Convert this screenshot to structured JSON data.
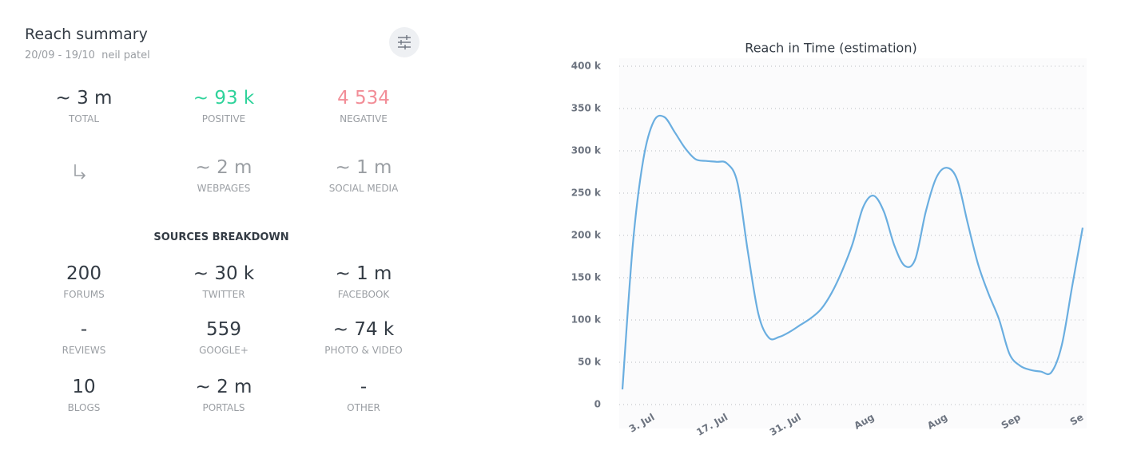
{
  "summary": {
    "title": "Reach summary",
    "period": "20/09 - 19/10",
    "user": "neil patel",
    "stats": [
      {
        "value": "~ 3 m",
        "label": "TOTAL",
        "color": "#333b44"
      },
      {
        "value": "~ 93 k",
        "label": "POSITIVE",
        "color": "#2fd39b"
      },
      {
        "value": "4 534",
        "label": "NEGATIVE",
        "color": "#f28d97"
      }
    ],
    "channels": [
      {
        "value": "~ 2 m",
        "label": "WEBPAGES",
        "color": "#9a9ea3"
      },
      {
        "value": "~ 1 m",
        "label": "SOCIAL MEDIA",
        "color": "#9a9ea3"
      }
    ],
    "breakdown_title": "SOURCES BREAKDOWN",
    "sources": [
      {
        "value": "200",
        "label": "FORUMS"
      },
      {
        "value": "~ 30 k",
        "label": "TWITTER"
      },
      {
        "value": "~ 1 m",
        "label": "FACEBOOK"
      },
      {
        "value": "-",
        "label": "REVIEWS"
      },
      {
        "value": "559",
        "label": "GOOGLE+"
      },
      {
        "value": "~ 74 k",
        "label": "PHOTO & VIDEO"
      },
      {
        "value": "10",
        "label": "BLOGS"
      },
      {
        "value": "~ 2 m",
        "label": "PORTALS"
      },
      {
        "value": "-",
        "label": "OTHER"
      }
    ]
  },
  "chart_data": {
    "type": "line",
    "title": "Reach in Time (estimation)",
    "categories": [
      null,
      null,
      null,
      "3. Jul",
      null,
      null,
      null,
      null,
      null,
      null,
      "17. Jul",
      null,
      null,
      null,
      null,
      null,
      null,
      "31. Jul",
      null,
      null,
      null,
      null,
      null,
      null,
      "Aug",
      null,
      null,
      null,
      null,
      null,
      null,
      "Aug",
      null,
      null,
      null,
      null,
      null,
      null,
      "Sep",
      null,
      null,
      null,
      null,
      null,
      "Se"
    ],
    "series": [
      {
        "name": "Reach",
        "color": "#6aaee0",
        "values": [
          18000,
          190000,
          290000,
          335000,
          340000,
          322000,
          303000,
          290000,
          288000,
          287000,
          285000,
          262000,
          180000,
          107000,
          79000,
          80000,
          86000,
          94000,
          102000,
          113000,
          132000,
          158000,
          190000,
          233000,
          247000,
          228000,
          188000,
          164000,
          172000,
          228000,
          268000,
          280000,
          266000,
          215000,
          166000,
          131000,
          101000,
          60000,
          46000,
          41000,
          39000,
          38000,
          70000,
          140000,
          209000
        ]
      }
    ],
    "ylim": [
      0,
      400000
    ],
    "yticks": [
      0,
      {
        "value": 50000,
        "label": "50 k"
      },
      {
        "value": 100000,
        "label": "100 k"
      },
      {
        "value": 150000,
        "label": "150 k"
      },
      {
        "value": 200000,
        "label": "200 k"
      },
      {
        "value": 250000,
        "label": "250 k"
      },
      {
        "value": 300000,
        "label": "300 k"
      },
      {
        "value": 350000,
        "label": "350 k"
      },
      {
        "value": 400000,
        "label": "400 k"
      }
    ],
    "grid": true
  }
}
